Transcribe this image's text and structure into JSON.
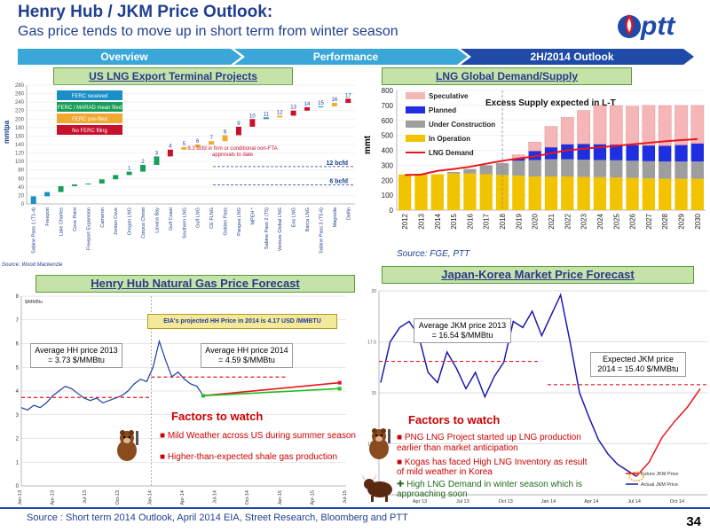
{
  "header": {
    "title": "Henry Hub / JKM Price Outlook:",
    "subtitle": "Gas price tends to move up in short term from winter season",
    "logo_text": "ptt"
  },
  "nav": {
    "tabs": [
      {
        "label": "Overview",
        "color": "#3aa7d8"
      },
      {
        "label": "Performance",
        "color": "#3aa7d8"
      },
      {
        "label": "2H/2014 Outlook",
        "color": "#1f4aa8"
      }
    ]
  },
  "us_lng": {
    "section_title": "US LNG Export Terminal Projects",
    "legend": [
      {
        "label": "FERC received",
        "color": "#1a8fc7"
      },
      {
        "label": "FERC / MARAD mean filed",
        "color": "#1a9e5a"
      },
      {
        "label": "FERC pre-filed",
        "color": "#f0a830"
      },
      {
        "label": "No FERC filing",
        "color": "#c8102e"
      }
    ],
    "annotation": "9.3 bcfd in firm or conditional non-FTA approvals to date",
    "line_12": "12 bcfd",
    "line_6": "6 bcfd",
    "source": "Source: Wood Mackenzie",
    "chart_data": {
      "type": "bar",
      "ylabel": "mmtpa",
      "ylim": [
        0,
        280
      ],
      "yticks": [
        0,
        20,
        40,
        60,
        80,
        100,
        120,
        140,
        160,
        180,
        200,
        220,
        240,
        260,
        280
      ],
      "categories": [
        "Sabine Pass 1 (T1-4)",
        "Freeport",
        "Lake Charles",
        "Cove Point",
        "Freeport Expansion",
        "Cameron",
        "Jordan Cove",
        "Oregon LNG",
        "Corpus Christi",
        "Lavaca Bay",
        "Gulf Coast",
        "Southern LNG",
        "Gulf LNG",
        "CE FLNG",
        "Golden Pass",
        "Pangea LNG",
        "MPEH *",
        "Sabine Pass 2 (T5)",
        "Venture Global LNG",
        "Eos LNG",
        "Barca LNG",
        "Sabine Pass 3 (T5-6)",
        "Magnolia",
        "Delfin"
      ],
      "bar_labels": [
        "",
        "",
        "",
        "",
        "",
        "",
        "",
        "1",
        "2",
        "3",
        "4",
        "5",
        "6",
        "7",
        "8",
        "9",
        "10",
        "11",
        "12",
        "13",
        "14",
        "15",
        "16",
        "17"
      ],
      "cumulative": [
        18,
        28,
        42,
        46,
        48,
        58,
        68,
        76,
        92,
        112,
        128,
        134,
        140,
        148,
        162,
        182,
        200,
        204,
        208,
        220,
        228,
        230,
        238,
        248
      ],
      "increments": [
        18,
        10,
        14,
        4,
        2,
        10,
        10,
        8,
        16,
        20,
        16,
        6,
        6,
        8,
        14,
        20,
        18,
        4,
        4,
        12,
        8,
        2,
        8,
        10
      ],
      "status": [
        "received",
        "received",
        "marad",
        "marad",
        "marad",
        "marad",
        "marad",
        "marad",
        "marad",
        "marad",
        "nofiling",
        "prefiled",
        "prefiled",
        "prefiled",
        "prefiled",
        "nofiling",
        "nofiling",
        "received",
        "prefiled",
        "nofiling",
        "nofiling",
        "received",
        "prefiled",
        "nofiling"
      ],
      "ref_lines": [
        {
          "label": "12 bcfd",
          "value": 88
        },
        {
          "label": "6 bcfd",
          "value": 45
        }
      ]
    }
  },
  "lng_global": {
    "section_title": "LNG Global Demand/Supply",
    "annotation": "Excess Supply expected in L-T",
    "source": "Source: FGE, PTT",
    "chart_data": {
      "type": "bar",
      "stacked": true,
      "ylabel": "mmt",
      "ylim": [
        0,
        800
      ],
      "yticks": [
        0,
        100,
        200,
        300,
        400,
        500,
        600,
        700,
        800
      ],
      "categories": [
        "2012",
        "2013",
        "2014",
        "2015",
        "2016",
        "2017",
        "2018",
        "2019",
        "2020",
        "2021",
        "2022",
        "2023",
        "2024",
        "2025",
        "2026",
        "2027",
        "2028",
        "2029",
        "2030"
      ],
      "series": [
        {
          "name": "In Operation",
          "color": "#f2c300",
          "values": [
            238,
            240,
            240,
            245,
            245,
            240,
            235,
            230,
            225,
            225,
            225,
            222,
            220,
            218,
            215,
            212,
            210,
            210,
            210
          ]
        },
        {
          "name": "Under Construction",
          "color": "#9e9e9e",
          "values": [
            0,
            0,
            0,
            10,
            30,
            60,
            80,
            100,
            110,
            115,
            115,
            115,
            115,
            115,
            115,
            115,
            115,
            115,
            115
          ]
        },
        {
          "name": "Planned",
          "color": "#1f2fe0",
          "values": [
            0,
            0,
            0,
            0,
            0,
            0,
            0,
            15,
            60,
            80,
            100,
            105,
            105,
            105,
            105,
            105,
            105,
            110,
            120
          ]
        },
        {
          "name": "Speculative",
          "color": "#f4b6b6",
          "values": [
            0,
            0,
            0,
            0,
            0,
            0,
            0,
            25,
            60,
            140,
            180,
            225,
            260,
            260,
            260,
            268,
            268,
            265,
            255
          ]
        }
      ],
      "line": {
        "name": "LNG Demand",
        "color": "#e8141e",
        "values": [
          235,
          238,
          262,
          275,
          290,
          310,
          330,
          345,
          360,
          380,
          400,
          410,
          420,
          430,
          440,
          450,
          460,
          468,
          475
        ]
      }
    }
  },
  "henry_hub": {
    "section_title": "Henry Hub Natural Gas Price Forecast",
    "unit_label": "$/MMBtu",
    "banner": "EIA's projected HH Price in 2014 is 4.17 USD /MMBTU",
    "callout_2013": "Average HH price 2013 = 3.73 $/MMBtu",
    "callout_2014": "Average HH price 2014 = 4.59 $/MMBtu",
    "factors_title": "Factors to watch",
    "factors": [
      "Mild Weather across US during summer season",
      "Higher-than-expected shale gas production"
    ],
    "chart_data": {
      "type": "line",
      "ylim": [
        0,
        8
      ],
      "yticks": [
        0,
        1,
        2,
        3,
        4,
        5,
        6,
        7,
        8
      ],
      "xticks": [
        "Jan-13",
        "Apr-13",
        "Jul-13",
        "Oct-13",
        "Jan-14",
        "Apr-14",
        "Jul-14",
        "Oct-14",
        "Jan-15",
        "Apr-15",
        "Jul-15"
      ],
      "series": [
        {
          "name": "HH spot",
          "color": "#1a3fa8",
          "values": [
            3.3,
            3.2,
            3.4,
            3.3,
            3.5,
            3.8,
            4.0,
            4.2,
            4.1,
            3.9,
            3.7,
            3.6,
            3.7,
            3.5,
            3.6,
            3.7,
            3.8,
            4.0,
            4.3,
            4.5,
            4.4,
            5.0,
            6.1,
            5.3,
            4.6,
            4.8,
            4.5,
            4.3,
            4.2,
            3.8
          ]
        },
        {
          "name": "Forecast 1",
          "color": "#e8141e",
          "values": [
            3.8,
            4.35
          ]
        },
        {
          "name": "Forecast 2",
          "color": "#1fc01f",
          "values": [
            3.8,
            4.1
          ]
        }
      ],
      "avg_2013": 3.73,
      "avg_2014": 4.59
    }
  },
  "jkm": {
    "section_title": "Japan-Korea Market Price Forecast",
    "callout_2013": "Average JKM price 2013 = 16.54 $/MMBtu",
    "callout_2014": "Expected JKM price 2014 = 15.40 $/MMBtu",
    "factors_title": "Factors to watch",
    "factors": [
      "PNG LNG Project started up LNG production earlier than market anticipation",
      "Kogas has faced High LNG Inventory as result of mild weather in Korea",
      "High LNG Demand in winter season which is approaching soon"
    ],
    "legend": [
      "Future JKM Price",
      "Actual JKM Price"
    ],
    "chart_data": {
      "type": "line",
      "ylim": [
        10,
        20
      ],
      "yticks": [
        10,
        12.5,
        15,
        17.5,
        20
      ],
      "xticks": [
        "Apr 13",
        "Jul 13",
        "Oct 13",
        "Jan 14",
        "Apr 14",
        "Jul 14",
        "Oct 14"
      ],
      "series": [
        {
          "name": "Actual JKM Price",
          "color": "#1a1ab0",
          "values": [
            15.5,
            17.5,
            18.2,
            18.5,
            17.8,
            16.0,
            15.5,
            17.0,
            16.2,
            15.2,
            16.0,
            14.8,
            15.8,
            16.5,
            18.5,
            18.2,
            19.0,
            17.8,
            18.8,
            19.8,
            17.5,
            15.0,
            13.8,
            12.7,
            12.0,
            11.5,
            11.2,
            10.9
          ]
        },
        {
          "name": "Future JKM Price",
          "color": "#e8141e",
          "values": [
            10.9,
            11.6,
            12.8,
            13.6,
            14.3,
            15.2
          ]
        }
      ],
      "avg_2013": 16.54,
      "avg_2014": 15.4
    }
  },
  "footer": {
    "source": "Source : Short term 2014 Outlook, April 2014  EIA, Street Research, Bloomberg and PTT",
    "page": "34"
  }
}
